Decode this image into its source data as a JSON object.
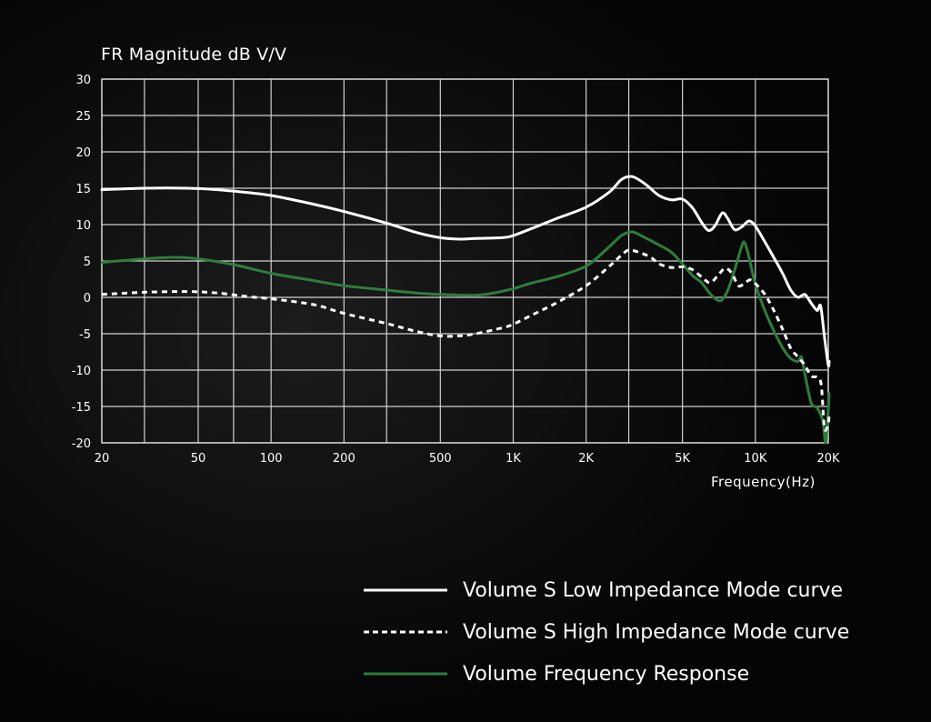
{
  "chart_data": {
    "type": "line",
    "title": "FR Magnitude dB V/V",
    "xlabel": "Frequency(Hz)",
    "ylabel": "",
    "x_scale": "log",
    "xlim": [
      20,
      20000
    ],
    "ylim": [
      -20,
      30
    ],
    "grid": true,
    "legend_position": "bottom-right",
    "x_ticks": [
      {
        "value": 20,
        "label": "20"
      },
      {
        "value": 30,
        "label": ""
      },
      {
        "value": 50,
        "label": "50"
      },
      {
        "value": 70,
        "label": ""
      },
      {
        "value": 100,
        "label": "100"
      },
      {
        "value": 200,
        "label": "200"
      },
      {
        "value": 300,
        "label": ""
      },
      {
        "value": 500,
        "label": "500"
      },
      {
        "value": 1000,
        "label": "1K"
      },
      {
        "value": 2000,
        "label": "2K"
      },
      {
        "value": 3000,
        "label": ""
      },
      {
        "value": 5000,
        "label": "5K"
      },
      {
        "value": 10000,
        "label": "10K"
      },
      {
        "value": 20000,
        "label": "20K"
      }
    ],
    "y_ticks": [
      {
        "value": 30,
        "label": "30"
      },
      {
        "value": 25,
        "label": "25"
      },
      {
        "value": 20,
        "label": "20"
      },
      {
        "value": 15,
        "label": "15"
      },
      {
        "value": 10,
        "label": "10"
      },
      {
        "value": 5,
        "label": "5"
      },
      {
        "value": 0,
        "label": "0"
      },
      {
        "value": -5,
        "label": "-5"
      },
      {
        "value": -10,
        "label": "-10"
      },
      {
        "value": -15,
        "label": "-15"
      },
      {
        "value": -20,
        "label": "-20"
      }
    ],
    "series": [
      {
        "name": "Volume S Low Impedance Mode curve",
        "color": "#ffffff",
        "style": "solid",
        "points": [
          [
            20,
            14.8
          ],
          [
            30,
            15.0
          ],
          [
            45,
            15.0
          ],
          [
            60,
            14.8
          ],
          [
            80,
            14.4
          ],
          [
            100,
            14.0
          ],
          [
            150,
            12.8
          ],
          [
            200,
            11.8
          ],
          [
            300,
            10.2
          ],
          [
            400,
            8.9
          ],
          [
            500,
            8.2
          ],
          [
            600,
            8.0
          ],
          [
            700,
            8.1
          ],
          [
            900,
            8.2
          ],
          [
            1000,
            8.5
          ],
          [
            1200,
            9.5
          ],
          [
            1500,
            10.8
          ],
          [
            2000,
            12.4
          ],
          [
            2500,
            14.5
          ],
          [
            2800,
            16.2
          ],
          [
            3100,
            16.6
          ],
          [
            3500,
            15.6
          ],
          [
            4000,
            14.0
          ],
          [
            4500,
            13.4
          ],
          [
            5000,
            13.5
          ],
          [
            5500,
            12.3
          ],
          [
            6000,
            10.3
          ],
          [
            6400,
            9.2
          ],
          [
            6800,
            9.8
          ],
          [
            7300,
            11.6
          ],
          [
            7700,
            10.8
          ],
          [
            8200,
            9.3
          ],
          [
            8800,
            9.7
          ],
          [
            9400,
            10.5
          ],
          [
            10000,
            9.8
          ],
          [
            11000,
            7.5
          ],
          [
            12000,
            5.3
          ],
          [
            13000,
            3.2
          ],
          [
            14000,
            1.0
          ],
          [
            15000,
            0.0
          ],
          [
            16000,
            0.4
          ],
          [
            17000,
            -0.8
          ],
          [
            18000,
            -1.8
          ],
          [
            18600,
            -1.2
          ],
          [
            19300,
            -5.5
          ],
          [
            20000,
            -9.3
          ],
          [
            20500,
            -8.8
          ]
        ]
      },
      {
        "name": "Volume S High Impedance Mode curve",
        "color": "#ffffff",
        "style": "dashed",
        "points": [
          [
            20,
            0.4
          ],
          [
            30,
            0.7
          ],
          [
            45,
            0.8
          ],
          [
            60,
            0.6
          ],
          [
            80,
            0.1
          ],
          [
            100,
            -0.2
          ],
          [
            150,
            -1.0
          ],
          [
            200,
            -2.2
          ],
          [
            300,
            -3.6
          ],
          [
            400,
            -4.7
          ],
          [
            500,
            -5.3
          ],
          [
            600,
            -5.3
          ],
          [
            700,
            -5.0
          ],
          [
            900,
            -4.2
          ],
          [
            1000,
            -3.7
          ],
          [
            1200,
            -2.4
          ],
          [
            1500,
            -0.8
          ],
          [
            2000,
            1.6
          ],
          [
            2500,
            4.3
          ],
          [
            2800,
            5.8
          ],
          [
            3000,
            6.5
          ],
          [
            3300,
            6.2
          ],
          [
            3700,
            5.5
          ],
          [
            4000,
            4.6
          ],
          [
            4500,
            4.1
          ],
          [
            5000,
            4.2
          ],
          [
            5500,
            3.8
          ],
          [
            6000,
            2.8
          ],
          [
            6500,
            2.0
          ],
          [
            7000,
            3.0
          ],
          [
            7500,
            4.0
          ],
          [
            8000,
            3.3
          ],
          [
            8500,
            1.6
          ],
          [
            9000,
            1.9
          ],
          [
            9500,
            2.4
          ],
          [
            10000,
            1.9
          ],
          [
            11000,
            0.3
          ],
          [
            12000,
            -2.0
          ],
          [
            13000,
            -4.5
          ],
          [
            14000,
            -7.0
          ],
          [
            15000,
            -8.2
          ],
          [
            16000,
            -9.3
          ],
          [
            17000,
            -10.8
          ],
          [
            18000,
            -11.0
          ],
          [
            18700,
            -12.0
          ],
          [
            19300,
            -18.0
          ],
          [
            20000,
            -17.3
          ],
          [
            20500,
            -16.0
          ]
        ]
      },
      {
        "name": "Volume Frequency Response",
        "color": "#2e7d3c",
        "style": "solid",
        "points": [
          [
            20,
            4.8
          ],
          [
            30,
            5.3
          ],
          [
            40,
            5.5
          ],
          [
            50,
            5.3
          ],
          [
            70,
            4.5
          ],
          [
            100,
            3.3
          ],
          [
            150,
            2.3
          ],
          [
            200,
            1.6
          ],
          [
            300,
            1.0
          ],
          [
            400,
            0.6
          ],
          [
            500,
            0.4
          ],
          [
            600,
            0.3
          ],
          [
            700,
            0.3
          ],
          [
            800,
            0.5
          ],
          [
            1000,
            1.2
          ],
          [
            1200,
            2.0
          ],
          [
            1500,
            2.8
          ],
          [
            2000,
            4.3
          ],
          [
            2500,
            7.0
          ],
          [
            2800,
            8.5
          ],
          [
            3100,
            9.0
          ],
          [
            3500,
            8.2
          ],
          [
            4000,
            7.2
          ],
          [
            4500,
            6.2
          ],
          [
            5000,
            4.6
          ],
          [
            5500,
            3.0
          ],
          [
            6000,
            2.0
          ],
          [
            6500,
            0.5
          ],
          [
            7000,
            -0.4
          ],
          [
            7300,
            -0.3
          ],
          [
            7700,
            1.0
          ],
          [
            8200,
            3.7
          ],
          [
            8700,
            6.6
          ],
          [
            9000,
            7.6
          ],
          [
            9400,
            5.6
          ],
          [
            10000,
            1.8
          ],
          [
            11000,
            -2.0
          ],
          [
            12000,
            -4.8
          ],
          [
            13000,
            -7.0
          ],
          [
            14000,
            -8.4
          ],
          [
            15000,
            -8.8
          ],
          [
            15500,
            -8.2
          ],
          [
            16000,
            -10.5
          ],
          [
            17000,
            -14.5
          ],
          [
            18000,
            -15.2
          ],
          [
            19000,
            -17.0
          ],
          [
            19500,
            -20.0
          ],
          [
            20000,
            -15.5
          ],
          [
            20500,
            -13.2
          ]
        ]
      }
    ]
  }
}
